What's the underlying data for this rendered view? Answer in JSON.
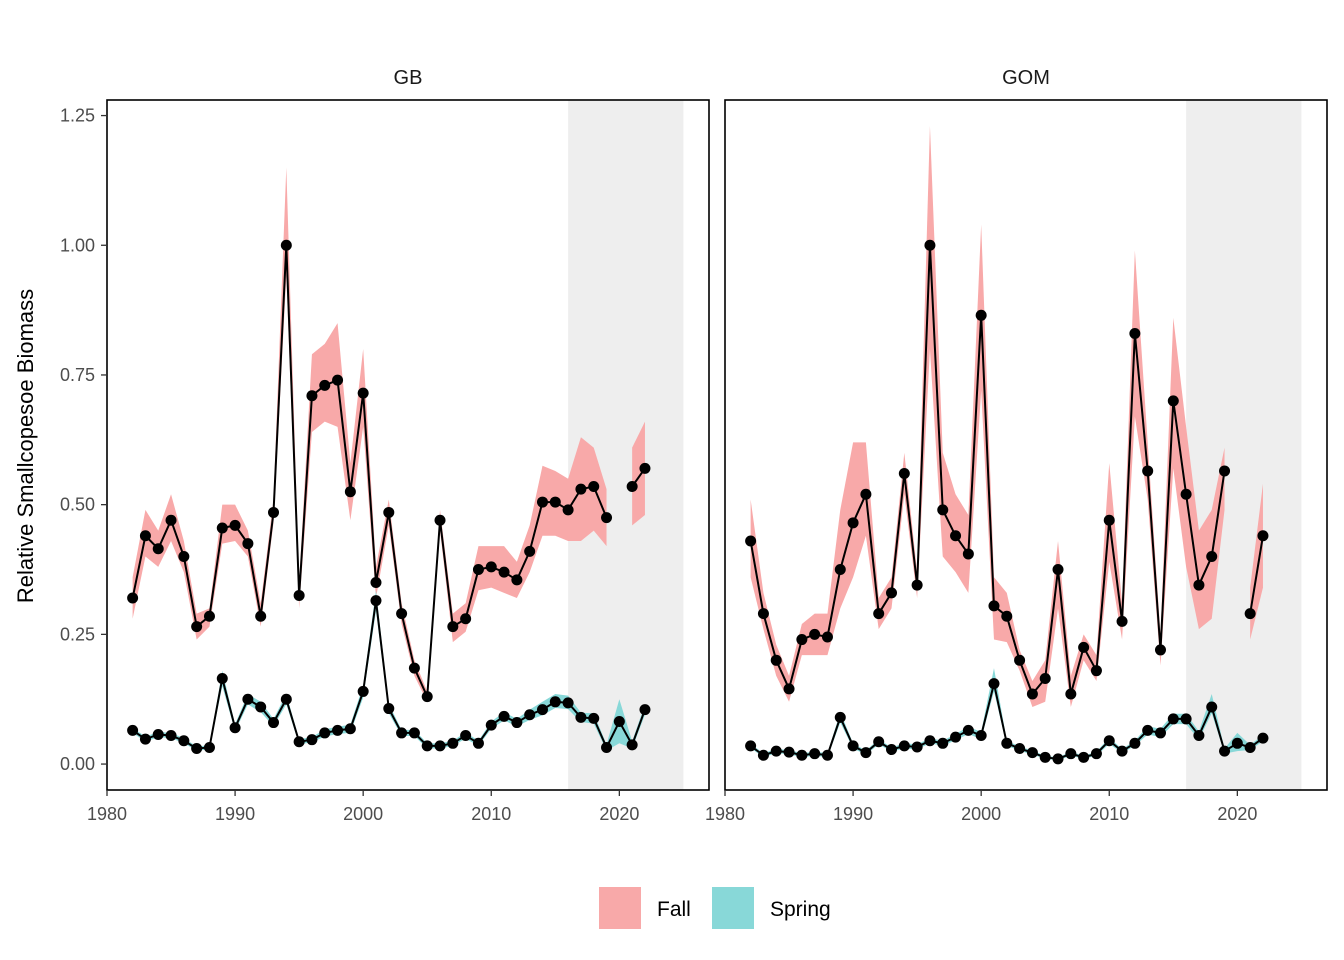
{
  "chart_data": {
    "type": "line",
    "ylabel": "Relative Smallcopesoe Biomass",
    "xlabel": "",
    "xlim": [
      1980,
      2027
    ],
    "ylim": [
      -0.05,
      1.28
    ],
    "x_ticks": [
      1980,
      1990,
      2000,
      2010,
      2020
    ],
    "y_ticks": [
      0.0,
      0.25,
      0.5,
      0.75,
      1.0,
      1.25
    ],
    "y_tick_labels": [
      "0.00",
      "0.25",
      "0.50",
      "0.75",
      "1.00",
      "1.25"
    ],
    "shaded_period": [
      2016,
      2025
    ],
    "legend": {
      "position": "bottom",
      "items": [
        {
          "name": "Fall",
          "color": "#F8A9A9"
        },
        {
          "name": "Spring",
          "color": "#88D8D8"
        }
      ]
    },
    "colors": {
      "fall_band": "#F8A9A9",
      "spring_band": "#88D8D8",
      "line": "#000000",
      "shade": "#EEEEEE"
    },
    "panels": [
      {
        "name": "GB",
        "series": [
          {
            "name": "Fall",
            "x": [
              1982,
              1983,
              1984,
              1985,
              1986,
              1987,
              1988,
              1989,
              1990,
              1991,
              1992,
              1993,
              1994,
              1995,
              1996,
              1997,
              1998,
              1999,
              2000,
              2001,
              2002,
              2003,
              2004,
              2005,
              2006,
              2007,
              2008,
              2009,
              2010,
              2011,
              2012,
              2013,
              2014,
              2015,
              2016,
              2017,
              2018,
              2019,
              null,
              2021,
              2022
            ],
            "y": [
              0.32,
              0.44,
              0.415,
              0.47,
              0.4,
              0.265,
              0.285,
              0.455,
              0.46,
              0.425,
              0.285,
              0.485,
              1.0,
              0.325,
              0.71,
              0.73,
              0.74,
              0.525,
              0.715,
              0.35,
              0.485,
              0.29,
              0.185,
              0.13,
              0.47,
              0.265,
              0.28,
              0.375,
              0.38,
              0.37,
              0.355,
              0.41,
              0.505,
              0.505,
              0.49,
              0.53,
              0.535,
              0.475,
              null,
              0.535,
              0.57
            ],
            "lower": [
              0.28,
              0.4,
              0.38,
              0.43,
              0.37,
              0.24,
              0.265,
              0.425,
              0.43,
              0.4,
              0.265,
              0.465,
              0.94,
              0.3,
              0.64,
              0.66,
              0.65,
              0.47,
              0.65,
              0.32,
              0.46,
              0.27,
              0.17,
              0.12,
              0.45,
              0.235,
              0.255,
              0.335,
              0.34,
              0.33,
              0.32,
              0.37,
              0.44,
              0.44,
              0.43,
              0.43,
              0.45,
              0.42,
              null,
              0.46,
              0.48
            ],
            "upper": [
              0.36,
              0.49,
              0.45,
              0.52,
              0.43,
              0.29,
              0.3,
              0.5,
              0.5,
              0.45,
              0.31,
              0.51,
              1.15,
              0.35,
              0.79,
              0.81,
              0.85,
              0.58,
              0.8,
              0.38,
              0.51,
              0.31,
              0.2,
              0.14,
              0.49,
              0.29,
              0.31,
              0.42,
              0.42,
              0.42,
              0.39,
              0.46,
              0.575,
              0.565,
              0.55,
              0.63,
              0.61,
              0.53,
              null,
              0.61,
              0.66
            ]
          },
          {
            "name": "Spring",
            "x": [
              1982,
              1983,
              1984,
              1985,
              1986,
              1987,
              1988,
              1989,
              1990,
              1991,
              1992,
              1993,
              1994,
              1995,
              1996,
              1997,
              1998,
              1999,
              2000,
              2001,
              2002,
              2003,
              2004,
              2005,
              2006,
              2007,
              2008,
              2009,
              2010,
              2011,
              2012,
              2013,
              2014,
              2015,
              2016,
              2017,
              2018,
              2019,
              2020,
              2021,
              2022
            ],
            "y": [
              0.065,
              0.048,
              0.057,
              0.055,
              0.045,
              0.03,
              0.032,
              0.165,
              0.07,
              0.125,
              0.11,
              0.08,
              0.125,
              0.043,
              0.047,
              0.06,
              0.065,
              0.068,
              0.14,
              0.315,
              0.107,
              0.06,
              0.06,
              0.035,
              0.035,
              0.04,
              0.055,
              0.04,
              0.075,
              0.092,
              0.08,
              0.095,
              0.105,
              0.12,
              0.118,
              0.09,
              0.088,
              0.032,
              0.082,
              0.037,
              0.105
            ],
            "lower": [
              0.06,
              0.043,
              0.052,
              0.05,
              0.04,
              0.026,
              0.028,
              0.15,
              0.063,
              0.115,
              0.1,
              0.073,
              0.115,
              0.038,
              0.042,
              0.053,
              0.058,
              0.06,
              0.128,
              0.295,
              0.098,
              0.054,
              0.054,
              0.03,
              0.03,
              0.035,
              0.049,
              0.035,
              0.068,
              0.084,
              0.073,
              0.085,
              0.094,
              0.108,
              0.106,
              0.081,
              0.078,
              0.026,
              0.04,
              0.03,
              0.095
            ],
            "upper": [
              0.07,
              0.053,
              0.062,
              0.06,
              0.05,
              0.034,
              0.036,
              0.18,
              0.077,
              0.135,
              0.12,
              0.087,
              0.135,
              0.048,
              0.052,
              0.067,
              0.072,
              0.076,
              0.152,
              0.335,
              0.116,
              0.066,
              0.066,
              0.04,
              0.04,
              0.045,
              0.061,
              0.045,
              0.082,
              0.1,
              0.087,
              0.105,
              0.12,
              0.135,
              0.132,
              0.099,
              0.098,
              0.038,
              0.125,
              0.044,
              0.115
            ]
          }
        ]
      },
      {
        "name": "GOM",
        "series": [
          {
            "name": "Fall",
            "x": [
              1982,
              1983,
              1984,
              1985,
              1986,
              1987,
              1988,
              1989,
              1990,
              1991,
              1992,
              1993,
              1994,
              1995,
              1996,
              1997,
              1998,
              1999,
              2000,
              2001,
              2002,
              2003,
              2004,
              2005,
              2006,
              2007,
              2008,
              2009,
              2010,
              2011,
              2012,
              2013,
              2014,
              2015,
              2016,
              2017,
              2018,
              2019,
              null,
              2021,
              2022
            ],
            "y": [
              0.43,
              0.29,
              0.2,
              0.145,
              0.24,
              0.25,
              0.245,
              0.375,
              0.465,
              0.52,
              0.29,
              0.33,
              0.56,
              0.345,
              1.0,
              0.49,
              0.44,
              0.405,
              0.865,
              0.305,
              0.285,
              0.2,
              0.135,
              0.165,
              0.375,
              0.135,
              0.225,
              0.18,
              0.47,
              0.275,
              0.83,
              0.565,
              0.22,
              0.7,
              0.52,
              0.345,
              0.4,
              0.565,
              null,
              0.29,
              0.44
            ],
            "lower": [
              0.36,
              0.26,
              0.17,
              0.12,
              0.21,
              0.21,
              0.21,
              0.3,
              0.36,
              0.44,
              0.26,
              0.3,
              0.52,
              0.32,
              0.8,
              0.4,
              0.37,
              0.33,
              0.72,
              0.24,
              0.235,
              0.18,
              0.11,
              0.12,
              0.3,
              0.11,
              0.2,
              0.16,
              0.39,
              0.24,
              0.67,
              0.51,
              0.19,
              0.57,
              0.38,
              0.26,
              0.28,
              0.49,
              null,
              0.24,
              0.34
            ],
            "upper": [
              0.51,
              0.33,
              0.23,
              0.17,
              0.27,
              0.29,
              0.29,
              0.49,
              0.62,
              0.62,
              0.32,
              0.36,
              0.6,
              0.37,
              1.23,
              0.6,
              0.52,
              0.48,
              1.04,
              0.36,
              0.33,
              0.22,
              0.16,
              0.2,
              0.43,
              0.17,
              0.25,
              0.21,
              0.58,
              0.31,
              0.99,
              0.62,
              0.25,
              0.86,
              0.65,
              0.45,
              0.49,
              0.61,
              null,
              0.34,
              0.54
            ]
          },
          {
            "name": "Spring",
            "x": [
              1982,
              1983,
              1984,
              1985,
              1986,
              1987,
              1988,
              1989,
              1990,
              1991,
              1992,
              1993,
              1994,
              1995,
              1996,
              1997,
              1998,
              1999,
              2000,
              2001,
              2002,
              2003,
              2004,
              2005,
              2006,
              2007,
              2008,
              2009,
              2010,
              2011,
              2012,
              2013,
              2014,
              2015,
              2016,
              2017,
              2018,
              2019,
              2020,
              2021,
              2022
            ],
            "y": [
              0.035,
              0.017,
              0.025,
              0.023,
              0.017,
              0.02,
              0.017,
              0.09,
              0.035,
              0.022,
              0.043,
              0.028,
              0.035,
              0.033,
              0.045,
              0.04,
              0.052,
              0.065,
              0.055,
              0.155,
              0.04,
              0.03,
              0.022,
              0.013,
              0.01,
              0.02,
              0.013,
              0.02,
              0.045,
              0.025,
              0.04,
              0.065,
              0.06,
              0.087,
              0.087,
              0.055,
              0.11,
              0.025,
              0.04,
              0.032,
              0.05
            ],
            "lower": [
              0.031,
              0.013,
              0.021,
              0.019,
              0.013,
              0.016,
              0.013,
              0.08,
              0.03,
              0.018,
              0.038,
              0.024,
              0.03,
              0.028,
              0.04,
              0.035,
              0.046,
              0.058,
              0.048,
              0.14,
              0.035,
              0.026,
              0.018,
              0.01,
              0.007,
              0.016,
              0.01,
              0.016,
              0.039,
              0.021,
              0.035,
              0.057,
              0.052,
              0.077,
              0.077,
              0.047,
              0.098,
              0.02,
              0.025,
              0.027,
              0.044
            ],
            "upper": [
              0.039,
              0.021,
              0.029,
              0.027,
              0.021,
              0.024,
              0.021,
              0.1,
              0.04,
              0.026,
              0.048,
              0.032,
              0.04,
              0.038,
              0.05,
              0.045,
              0.058,
              0.072,
              0.062,
              0.185,
              0.045,
              0.034,
              0.026,
              0.016,
              0.013,
              0.024,
              0.016,
              0.024,
              0.051,
              0.029,
              0.045,
              0.073,
              0.068,
              0.097,
              0.097,
              0.063,
              0.135,
              0.03,
              0.06,
              0.037,
              0.056
            ]
          }
        ]
      }
    ]
  }
}
